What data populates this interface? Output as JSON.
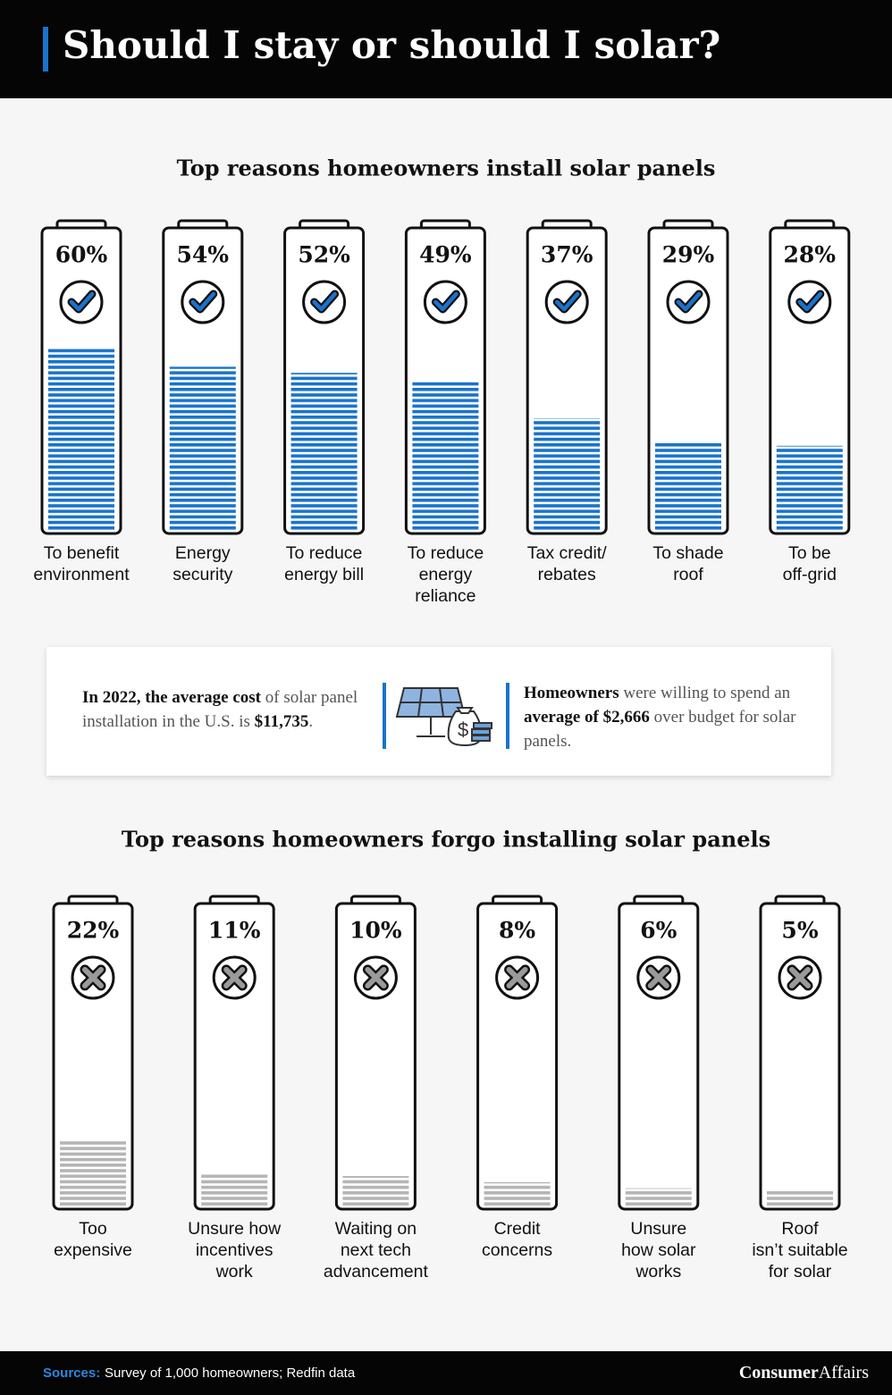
{
  "header": {
    "title": "Should I stay or should I solar?"
  },
  "chart_data": [
    {
      "type": "bar",
      "title": "Top reasons homeowners install solar panels",
      "categories": [
        "To benefit\nenvironment",
        "Energy\nsecurity",
        "To reduce\nenergy bill",
        "To reduce\nenergy\nreliance",
        "Tax credit/\nrebates",
        "To shade\nroof",
        "To be\noff-grid"
      ],
      "values": [
        60,
        54,
        52,
        49,
        37,
        29,
        28
      ],
      "value_labels": [
        "60%",
        "54%",
        "52%",
        "49%",
        "37%",
        "29%",
        "28%"
      ],
      "color": "#1a73cc",
      "marker": "check"
    },
    {
      "type": "bar",
      "title": "Top reasons homeowners forgo installing solar panels",
      "categories": [
        "Too\nexpensive",
        "Unsure how\nincentives\nwork",
        "Waiting on\nnext tech\nadvancement",
        "Credit\nconcerns",
        "Unsure\nhow solar\nworks",
        "Roof\nisn’t suitable\nfor solar"
      ],
      "values": [
        22,
        11,
        10,
        8,
        6,
        5
      ],
      "value_labels": [
        "22%",
        "11%",
        "10%",
        "8%",
        "6%",
        "5%"
      ],
      "color": "#b5b5b5",
      "marker": "cross"
    }
  ],
  "info": {
    "left": [
      "In 2022, the average cost",
      " of solar panel installation in the U.S. is ",
      "$11,735",
      "."
    ],
    "right": [
      "Homeowners",
      " were willing to spend an ",
      "average of $2,666",
      " over budget for solar panels."
    ]
  },
  "footer": {
    "sources_label": "Sources:",
    "sources": "Survey of 1,000 homeowners; Redfin data",
    "logo_bold": "Consumer",
    "logo_rest": "Affairs"
  }
}
